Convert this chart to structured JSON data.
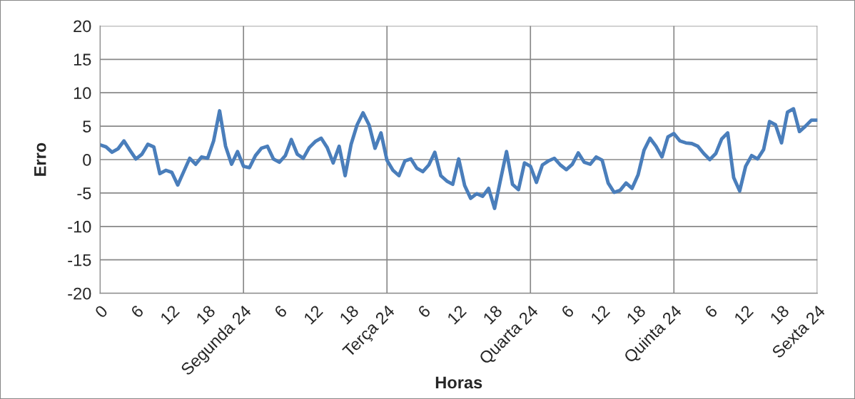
{
  "chart_data": {
    "type": "line",
    "xlabel": "Horas",
    "ylabel": "Erro",
    "categories": [
      "0",
      null,
      null,
      null,
      null,
      null,
      "6",
      null,
      null,
      null,
      null,
      null,
      "12",
      null,
      null,
      null,
      null,
      null,
      "18",
      null,
      null,
      null,
      null,
      null,
      "Segunda 24",
      null,
      null,
      null,
      null,
      null,
      "6",
      null,
      null,
      null,
      null,
      null,
      "12",
      null,
      null,
      null,
      null,
      null,
      "18",
      null,
      null,
      null,
      null,
      null,
      "Terça 24",
      null,
      null,
      null,
      null,
      null,
      "6",
      null,
      null,
      null,
      null,
      null,
      "12",
      null,
      null,
      null,
      null,
      null,
      "18",
      null,
      null,
      null,
      null,
      null,
      "Quarta 24",
      null,
      null,
      null,
      null,
      null,
      "6",
      null,
      null,
      null,
      null,
      null,
      "12",
      null,
      null,
      null,
      null,
      null,
      "18",
      null,
      null,
      null,
      null,
      null,
      "Quinta 24",
      null,
      null,
      null,
      null,
      null,
      "6",
      null,
      null,
      null,
      null,
      null,
      "12",
      null,
      null,
      null,
      null,
      null,
      "18",
      null,
      null,
      null,
      null,
      null,
      "Sexta 24"
    ],
    "series": [
      {
        "color": "#4a7ebb",
        "values": [
          2.2,
          1.9,
          1.1,
          1.6,
          2.8,
          1.4,
          0.1,
          0.8,
          2.3,
          1.9,
          -2.1,
          -1.6,
          -1.9,
          -3.8,
          -1.8,
          0.2,
          -0.7,
          0.4,
          0.2,
          2.8,
          7.3,
          2.0,
          -0.7,
          1.2,
          -1.0,
          -1.2,
          0.6,
          1.7,
          2.0,
          0.1,
          -0.4,
          0.6,
          3.0,
          0.8,
          0.2,
          1.8,
          2.7,
          3.2,
          1.8,
          -0.5,
          2.0,
          -2.4,
          2.3,
          5.2,
          7.0,
          5.2,
          1.7,
          4.0,
          -0.1,
          -1.6,
          -2.4,
          -0.2,
          0.1,
          -1.3,
          -1.8,
          -0.8,
          1.1,
          -2.4,
          -3.2,
          -3.7,
          0.1,
          -3.9,
          -5.8,
          -5.1,
          -5.5,
          -4.3,
          -7.3,
          -3.0,
          1.2,
          -3.7,
          -4.5,
          -0.5,
          -1.0,
          -3.4,
          -0.8,
          -0.2,
          0.2,
          -0.8,
          -1.5,
          -0.7,
          1.0,
          -0.4,
          -0.7,
          0.4,
          -0.1,
          -3.5,
          -4.9,
          -4.6,
          -3.5,
          -4.3,
          -2.3,
          1.4,
          3.2,
          2.0,
          0.4,
          3.4,
          3.9,
          2.8,
          2.5,
          2.4,
          2.0,
          0.9,
          0.0,
          0.9,
          3.1,
          4.0,
          -2.7,
          -4.7,
          -1.0,
          0.6,
          0.1,
          1.5,
          5.7,
          5.2,
          2.5,
          7.1,
          7.6,
          4.2,
          5.0,
          5.9,
          5.9
        ]
      }
    ],
    "ylim": [
      -20,
      20
    ],
    "yticks": [
      -20,
      -15,
      -10,
      -5,
      0,
      5,
      10,
      15,
      20
    ],
    "grid": true,
    "legend": false,
    "marker": "none",
    "line_style": "solid"
  }
}
